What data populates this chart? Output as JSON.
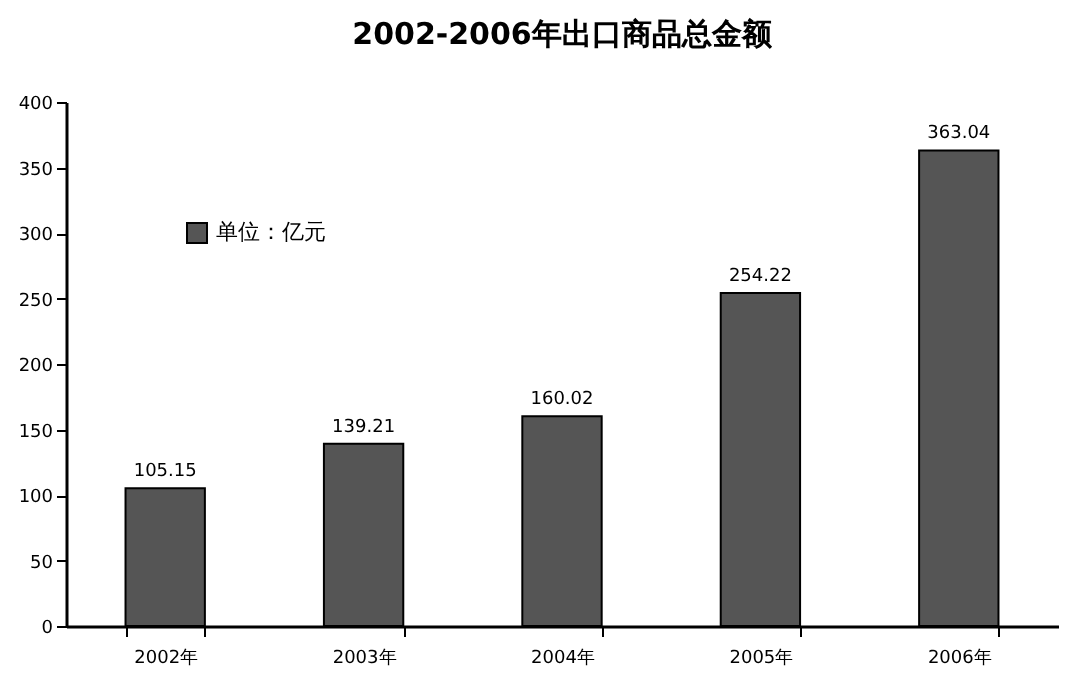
{
  "chart_data": {
    "type": "bar",
    "title": "2002-2006年出口商品总金额",
    "categories": [
      "2002年",
      "2003年",
      "2004年",
      "2005年",
      "2006年"
    ],
    "series": [
      {
        "name": "单位：亿元",
        "color": "#555555",
        "values": [
          105.15,
          139.21,
          160.02,
          254.22,
          363.04
        ]
      }
    ],
    "ylim": [
      0,
      400
    ],
    "yticks": [
      0,
      50,
      100,
      150,
      200,
      250,
      300,
      350,
      400
    ],
    "data_labels": true,
    "legend": "top left",
    "grid": false
  }
}
